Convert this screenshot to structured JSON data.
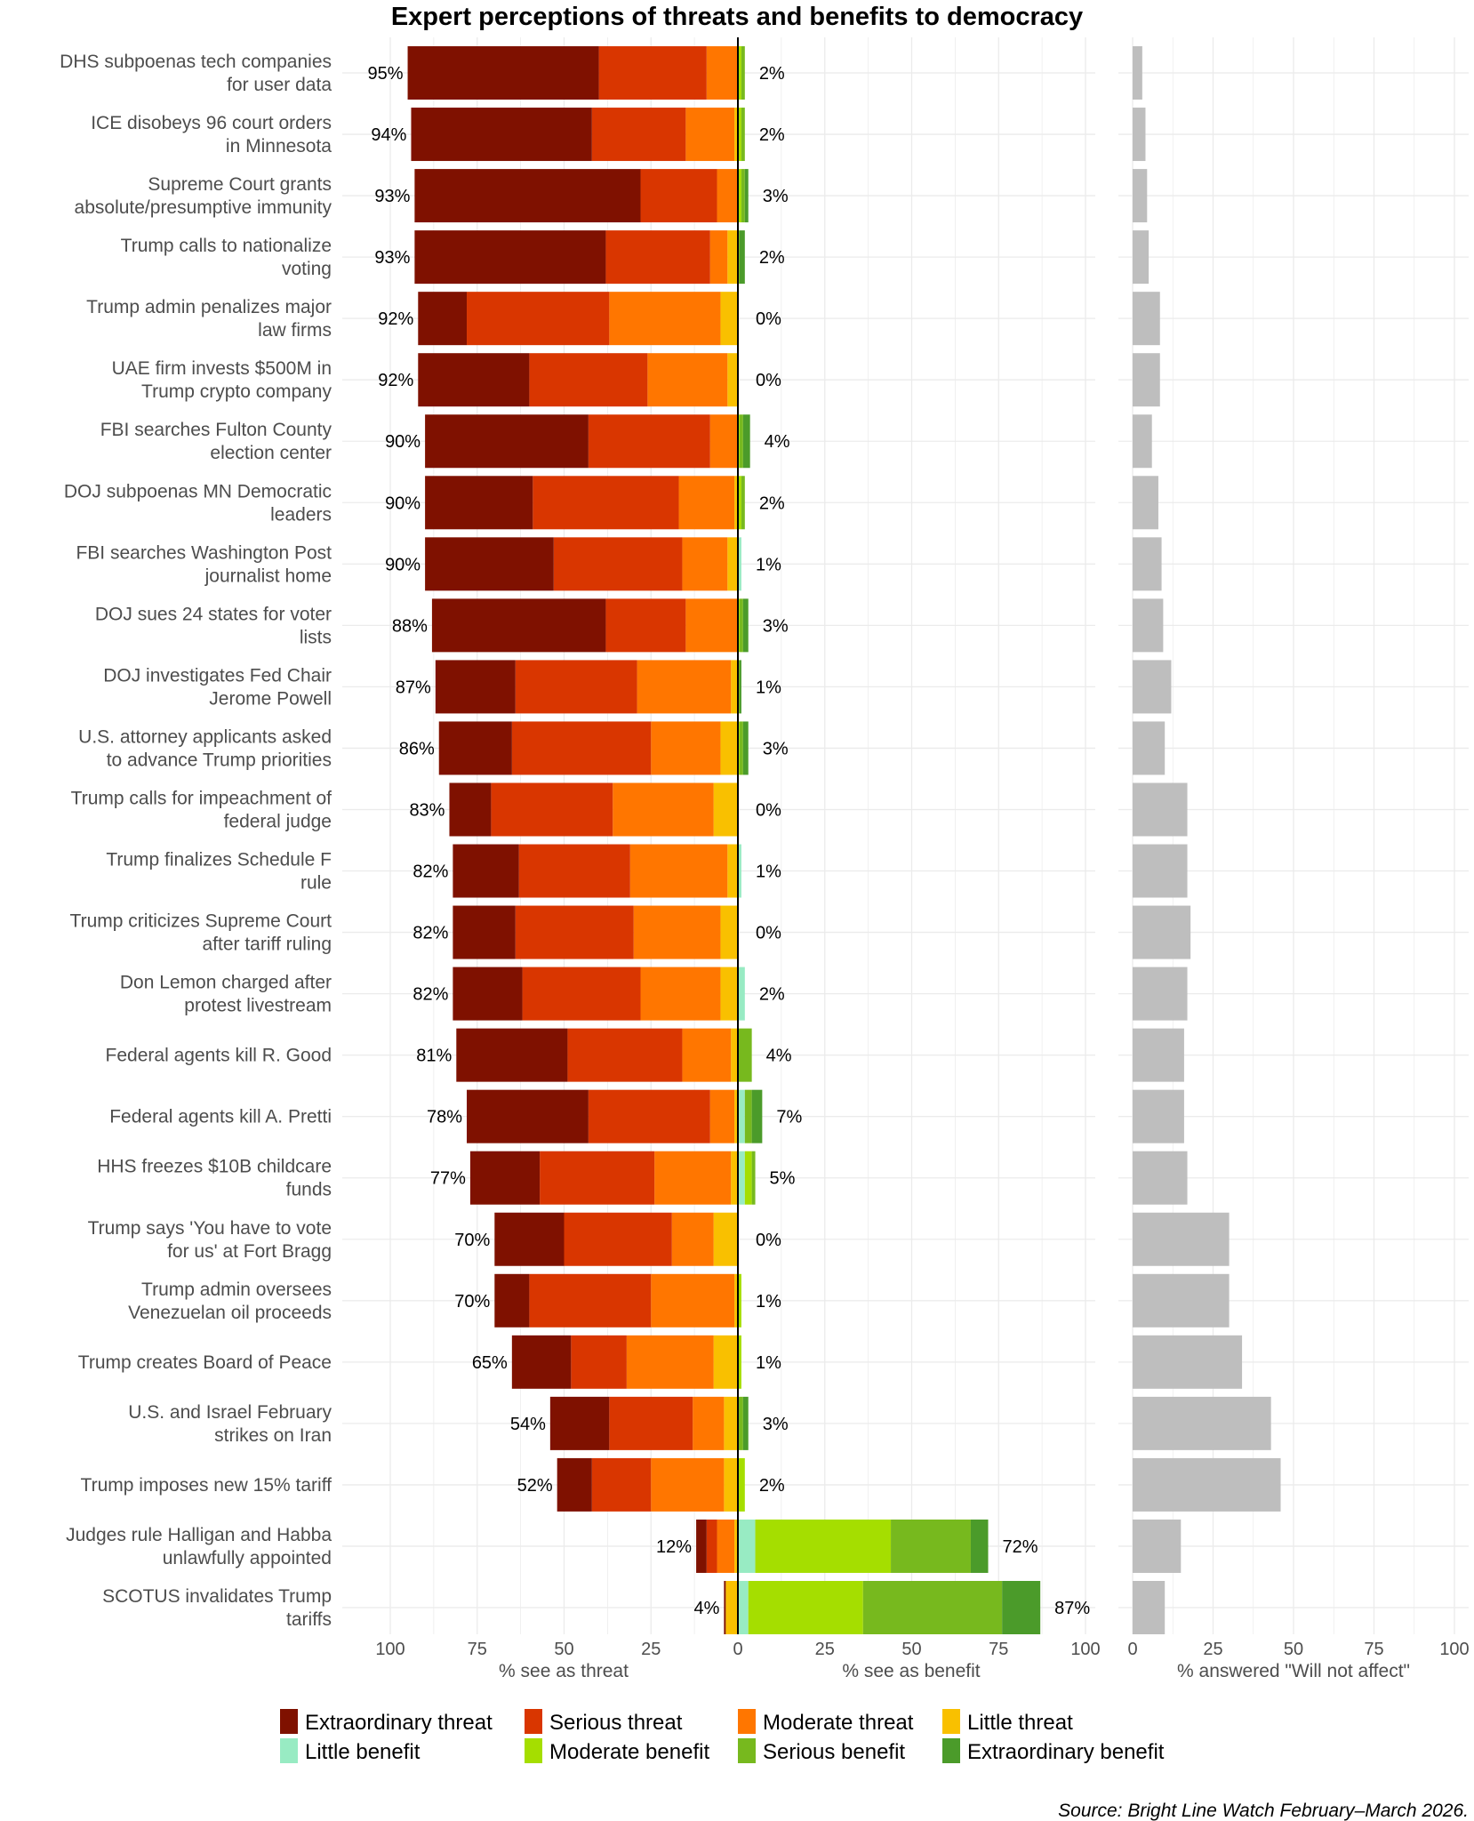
{
  "chart_data": {
    "type": "bar",
    "subtype": "diverging-stacked-horizontal-with-side-panel",
    "title": "Expert perceptions of threats and benefits to democracy",
    "source": "Source: Bright Line Watch February–March 2026.",
    "threat_axis": {
      "label": "% see as threat",
      "ticks": [
        100,
        75,
        50,
        25,
        0
      ],
      "range": [
        0,
        100
      ]
    },
    "benefit_axis": {
      "label": "% see as benefit",
      "ticks": [
        0,
        25,
        50,
        75,
        100
      ],
      "range": [
        0,
        100
      ]
    },
    "no_effect_axis": {
      "label": "% answered \"Will not affect\"",
      "ticks": [
        0,
        25,
        50,
        75,
        100
      ],
      "range": [
        0,
        100
      ]
    },
    "grid": true,
    "legend_position": "bottom",
    "threat_series": [
      {
        "name": "Extraordinary threat",
        "color": "#7F1100"
      },
      {
        "name": "Serious threat",
        "color": "#D93600"
      },
      {
        "name": "Moderate threat",
        "color": "#FF7600"
      },
      {
        "name": "Little threat",
        "color": "#F9C000"
      }
    ],
    "benefit_series": [
      {
        "name": "Little benefit",
        "color": "#98EBC3"
      },
      {
        "name": "Moderate benefit",
        "color": "#A5DE00"
      },
      {
        "name": "Serious benefit",
        "color": "#77B91E"
      },
      {
        "name": "Extraordinary benefit",
        "color": "#4B9B2A"
      }
    ],
    "no_effect_color": "#BEBEBE",
    "legend": [
      [
        "Extraordinary threat",
        "Serious threat",
        "Moderate threat",
        "Little threat"
      ],
      [
        "Little benefit",
        "Moderate benefit",
        "Serious benefit",
        "Extraordinary benefit"
      ]
    ],
    "categories": [
      {
        "label": [
          "DHS subpoenas tech companies",
          "for user data"
        ],
        "threat_total": "95%",
        "benefit_total": "2%",
        "threat": [
          55,
          31,
          9,
          0
        ],
        "benefit": [
          0,
          1,
          1,
          0
        ],
        "no_effect": 3
      },
      {
        "label": [
          "ICE disobeys 96 court orders",
          "in Minnesota"
        ],
        "threat_total": "94%",
        "benefit_total": "2%",
        "threat": [
          52,
          27,
          14,
          1
        ],
        "benefit": [
          0,
          1,
          1,
          0
        ],
        "no_effect": 4
      },
      {
        "label": [
          "Supreme Court grants",
          "absolute/presumptive immunity"
        ],
        "threat_total": "93%",
        "benefit_total": "3%",
        "threat": [
          65,
          22,
          6,
          0
        ],
        "benefit": [
          0,
          1,
          1,
          1
        ],
        "no_effect": 4.5
      },
      {
        "label": [
          "Trump calls to nationalize",
          "voting"
        ],
        "threat_total": "93%",
        "benefit_total": "2%",
        "threat": [
          55,
          30,
          5,
          3
        ],
        "benefit": [
          0,
          0,
          0.5,
          1.5
        ],
        "no_effect": 5
      },
      {
        "label": [
          "Trump admin penalizes major",
          "law firms"
        ],
        "threat_total": "92%",
        "benefit_total": "0%",
        "threat": [
          14,
          41,
          32,
          5
        ],
        "benefit": [
          0,
          0,
          0,
          0
        ],
        "no_effect": 8.5
      },
      {
        "label": [
          "UAE firm invests $500M in",
          "Trump crypto company"
        ],
        "threat_total": "92%",
        "benefit_total": "0%",
        "threat": [
          32,
          34,
          23,
          3
        ],
        "benefit": [
          0,
          0,
          0,
          0
        ],
        "no_effect": 8.5
      },
      {
        "label": [
          "FBI searches Fulton County",
          "election center"
        ],
        "threat_total": "90%",
        "benefit_total": "4%",
        "threat": [
          47,
          35,
          8,
          0
        ],
        "benefit": [
          0,
          0.5,
          1,
          2
        ],
        "no_effect": 6
      },
      {
        "label": [
          "DOJ subpoenas MN Democratic",
          "leaders"
        ],
        "threat_total": "90%",
        "benefit_total": "2%",
        "threat": [
          31,
          42,
          16,
          1
        ],
        "benefit": [
          0,
          1,
          1,
          0
        ],
        "no_effect": 8
      },
      {
        "label": [
          "FBI searches Washington Post",
          "journalist home"
        ],
        "threat_total": "90%",
        "benefit_total": "1%",
        "threat": [
          37,
          37,
          13,
          3
        ],
        "benefit": [
          1,
          0,
          0,
          0
        ],
        "no_effect": 9
      },
      {
        "label": [
          "DOJ sues 24 states for voter",
          "lists"
        ],
        "threat_total": "88%",
        "benefit_total": "3%",
        "threat": [
          50,
          23,
          15,
          0
        ],
        "benefit": [
          0,
          0.5,
          1,
          1.5
        ],
        "no_effect": 9.5
      },
      {
        "label": [
          "DOJ investigates Fed Chair",
          "Jerome Powell"
        ],
        "threat_total": "87%",
        "benefit_total": "1%",
        "threat": [
          23,
          35,
          27,
          2
        ],
        "benefit": [
          0,
          0,
          0.5,
          0.5
        ],
        "no_effect": 12
      },
      {
        "label": [
          "U.S. attorney applicants asked",
          "to advance Trump priorities"
        ],
        "threat_total": "86%",
        "benefit_total": "3%",
        "threat": [
          21,
          40,
          20,
          5
        ],
        "benefit": [
          0,
          0.5,
          1,
          1.5
        ],
        "no_effect": 10
      },
      {
        "label": [
          "Trump calls for impeachment of",
          "federal judge"
        ],
        "threat_total": "83%",
        "benefit_total": "0%",
        "threat": [
          12,
          35,
          29,
          7
        ],
        "benefit": [
          0,
          0,
          0,
          0
        ],
        "no_effect": 17
      },
      {
        "label": [
          "Trump finalizes Schedule F",
          "rule"
        ],
        "threat_total": "82%",
        "benefit_total": "1%",
        "threat": [
          19,
          32,
          28,
          3
        ],
        "benefit": [
          1,
          0,
          0,
          0
        ],
        "no_effect": 17
      },
      {
        "label": [
          "Trump criticizes Supreme Court",
          "after tariff ruling"
        ],
        "threat_total": "82%",
        "benefit_total": "0%",
        "threat": [
          18,
          34,
          25,
          5
        ],
        "benefit": [
          0,
          0,
          0,
          0
        ],
        "no_effect": 18
      },
      {
        "label": [
          "Don Lemon charged after",
          "protest livestream"
        ],
        "threat_total": "82%",
        "benefit_total": "2%",
        "threat": [
          20,
          34,
          23,
          5
        ],
        "benefit": [
          2,
          0,
          0,
          0
        ],
        "no_effect": 17
      },
      {
        "label": [
          "Federal agents kill R. Good"
        ],
        "threat_total": "81%",
        "benefit_total": "4%",
        "threat": [
          32,
          33,
          14,
          2
        ],
        "benefit": [
          0,
          0,
          4,
          0
        ],
        "no_effect": 16
      },
      {
        "label": [
          "Federal agents kill A. Pretti"
        ],
        "threat_total": "78%",
        "benefit_total": "7%",
        "threat": [
          35,
          35,
          7,
          1
        ],
        "benefit": [
          2,
          0,
          2,
          3
        ],
        "no_effect": 16
      },
      {
        "label": [
          "HHS freezes $10B childcare",
          "funds"
        ],
        "threat_total": "77%",
        "benefit_total": "5%",
        "threat": [
          20,
          33,
          22,
          2
        ],
        "benefit": [
          2,
          2,
          1,
          0
        ],
        "no_effect": 17
      },
      {
        "label": [
          "Trump says 'You have to vote",
          "for us' at Fort Bragg"
        ],
        "threat_total": "70%",
        "benefit_total": "0%",
        "threat": [
          20,
          31,
          12,
          7
        ],
        "benefit": [
          0,
          0,
          0,
          0
        ],
        "no_effect": 30
      },
      {
        "label": [
          "Trump admin oversees",
          "Venezuelan oil proceeds"
        ],
        "threat_total": "70%",
        "benefit_total": "1%",
        "threat": [
          10,
          35,
          24,
          1
        ],
        "benefit": [
          0,
          1,
          0,
          0
        ],
        "no_effect": 30
      },
      {
        "label": [
          "Trump creates Board of Peace"
        ],
        "threat_total": "65%",
        "benefit_total": "1%",
        "threat": [
          17,
          16,
          25,
          7
        ],
        "benefit": [
          0,
          1,
          0,
          0
        ],
        "no_effect": 34
      },
      {
        "label": [
          "U.S. and Israel February",
          "strikes on Iran"
        ],
        "threat_total": "54%",
        "benefit_total": "3%",
        "threat": [
          17,
          24,
          9,
          4
        ],
        "benefit": [
          0,
          0,
          1.5,
          1.5
        ],
        "no_effect": 43
      },
      {
        "label": [
          "Trump imposes new 15% tariff"
        ],
        "threat_total": "52%",
        "benefit_total": "2%",
        "threat": [
          10,
          17,
          21,
          4
        ],
        "benefit": [
          0,
          2,
          0,
          0
        ],
        "no_effect": 46
      },
      {
        "label": [
          "Judges rule Halligan and Habba",
          "unlawfully appointed"
        ],
        "threat_total": "12%",
        "benefit_total": "72%",
        "threat": [
          3,
          3,
          5,
          1
        ],
        "benefit": [
          5,
          39,
          23,
          5
        ],
        "no_effect": 15
      },
      {
        "label": [
          "SCOTUS invalidates Trump",
          "tariffs"
        ],
        "threat_total": "4%",
        "benefit_total": "87%",
        "threat": [
          0.5,
          0,
          0,
          3.5
        ],
        "benefit": [
          3,
          33,
          40,
          11
        ],
        "no_effect": 10
      }
    ]
  }
}
